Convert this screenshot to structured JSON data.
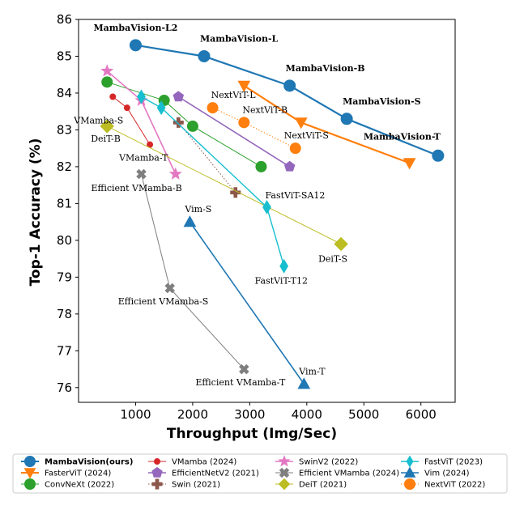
{
  "chart_data": {
    "type": "scatter",
    "xlabel": "Throughput (Img/Sec)",
    "ylabel": "Top-1 Accuracy (%)",
    "xlim": [
      0,
      6600
    ],
    "ylim": [
      75.6,
      86
    ],
    "xticks": [
      1000,
      2000,
      3000,
      4000,
      5000,
      6000
    ],
    "yticks": [
      76,
      77,
      78,
      79,
      80,
      81,
      82,
      83,
      84,
      85,
      86
    ],
    "grid": false,
    "legend_position": "bottom",
    "series": [
      {
        "name": "MambaVision(ours)",
        "color": "#1f77b4",
        "marker": "circle",
        "line": "solid",
        "lw": 2.2,
        "size": 7,
        "points": [
          [
            1000,
            85.3
          ],
          [
            2200,
            85.0
          ],
          [
            3700,
            84.2
          ],
          [
            4700,
            83.3
          ],
          [
            6300,
            82.3
          ]
        ],
        "labels": [
          {
            "i": 0,
            "text": "MambaVision-L2",
            "bold": true,
            "dx": -52,
            "dy": -18
          },
          {
            "i": 1,
            "text": "MambaVision-L",
            "bold": true,
            "dx": -5,
            "dy": -18
          },
          {
            "i": 2,
            "text": "MambaVision-B",
            "bold": true,
            "dx": -5,
            "dy": -18
          },
          {
            "i": 3,
            "text": "MambaVision-S",
            "bold": true,
            "dx": -5,
            "dy": -18
          },
          {
            "i": 4,
            "text": "MambaVision-T",
            "bold": true,
            "dx": -92,
            "dy": -20
          }
        ]
      },
      {
        "name": "FasterViT (2024)",
        "color": "#ff7f0e",
        "marker": "triangle-down",
        "line": "solid",
        "lw": 2.2,
        "size": 7,
        "points": [
          [
            2900,
            84.2
          ],
          [
            3900,
            83.2
          ],
          [
            5800,
            82.1
          ]
        ],
        "labels": []
      },
      {
        "name": "ConvNeXt (2022)",
        "color": "#2ca02c",
        "marker": "circle",
        "line": "solid",
        "lw": 1.0,
        "size": 6.5,
        "points": [
          [
            500,
            84.3
          ],
          [
            1500,
            83.8
          ],
          [
            2000,
            83.1
          ],
          [
            3200,
            82.0
          ]
        ],
        "labels": []
      },
      {
        "name": "VMamba (2024)",
        "color": "#d62728",
        "marker": "circle",
        "line": "solid",
        "lw": 1.0,
        "size": 3.5,
        "points": [
          [
            600,
            83.9
          ],
          [
            850,
            83.6
          ],
          [
            1250,
            82.6
          ]
        ],
        "labels": [
          {
            "i": 0,
            "text": "VMamba-S",
            "bold": false,
            "dx": -48,
            "dy": 33
          },
          {
            "i": 2,
            "text": "VMamba-T",
            "bold": false,
            "dx": -38,
            "dy": 20
          }
        ]
      },
      {
        "name": "EfficientNetV2 (2021)",
        "color": "#9467bd",
        "marker": "pentagon",
        "line": "solid",
        "lw": 1.6,
        "size": 6.5,
        "points": [
          [
            1750,
            83.9
          ],
          [
            3700,
            82.0
          ]
        ],
        "labels": []
      },
      {
        "name": "Swin (2021)",
        "color": "#8c564b",
        "marker": "plus",
        "line": "dotted",
        "lw": 1.0,
        "size": 6.5,
        "points": [
          [
            1750,
            83.2
          ],
          [
            2750,
            81.3
          ]
        ],
        "labels": []
      },
      {
        "name": "SwinV2 (2022)",
        "color": "#e377c2",
        "marker": "star",
        "line": "solid",
        "lw": 1.6,
        "size": 7,
        "points": [
          [
            500,
            84.6
          ],
          [
            1100,
            83.8
          ],
          [
            1700,
            81.8
          ]
        ],
        "labels": []
      },
      {
        "name": "Efficient VMamba (2024)",
        "color": "#7f7f7f",
        "marker": "x",
        "line": "solid",
        "lw": 1.0,
        "size": 6.5,
        "points": [
          [
            1100,
            81.8
          ],
          [
            1600,
            78.7
          ],
          [
            2900,
            76.5
          ]
        ],
        "labels": [
          {
            "i": 0,
            "text": "Efficient VMamba-B",
            "bold": false,
            "dx": -62,
            "dy": 21
          },
          {
            "i": 1,
            "text": "Efficient VMamba-S",
            "bold": false,
            "dx": -64,
            "dy": 20
          },
          {
            "i": 2,
            "text": "Efficient VMamba-T",
            "bold": false,
            "dx": -60,
            "dy": 20
          }
        ]
      },
      {
        "name": "DeiT (2021)",
        "color": "#bcbd22",
        "marker": "diamond",
        "line": "solid",
        "lw": 1.0,
        "size": 8,
        "points": [
          [
            500,
            83.1
          ],
          [
            4600,
            79.9
          ]
        ],
        "labels": [
          {
            "i": 0,
            "text": "DeiT-B",
            "bold": false,
            "dx": -20,
            "dy": 19
          },
          {
            "i": 1,
            "text": "DeiT-S",
            "bold": false,
            "dx": -28,
            "dy": 22
          }
        ]
      },
      {
        "name": "FastViT (2023)",
        "color": "#17becf",
        "marker": "thin-diamond",
        "line": "solid",
        "lw": 1.4,
        "size": 8,
        "points": [
          [
            1100,
            83.9
          ],
          [
            1450,
            83.6
          ],
          [
            3300,
            80.9
          ],
          [
            3600,
            79.3
          ]
        ],
        "labels": [
          {
            "i": 2,
            "text": "FastViT-SA12",
            "bold": false,
            "dx": -2,
            "dy": -11
          },
          {
            "i": 3,
            "text": "FastViT-T12",
            "bold": false,
            "dx": -36,
            "dy": 22
          }
        ]
      },
      {
        "name": "Vim (2024)",
        "color": "#1f77b4",
        "marker": "triangle-up",
        "line": "solid",
        "lw": 1.6,
        "size": 7,
        "points": [
          [
            1950,
            80.5
          ],
          [
            3950,
            76.1
          ]
        ],
        "labels": [
          {
            "i": 0,
            "text": "Vim-S",
            "bold": false,
            "dx": -6,
            "dy": -12
          },
          {
            "i": 1,
            "text": "Vim-T",
            "bold": false,
            "dx": -6,
            "dy": -12
          }
        ]
      },
      {
        "name": "NextViT (2022)",
        "color": "#ff7f0e",
        "marker": "circle",
        "line": "dotted",
        "lw": 1.0,
        "size": 6.5,
        "points": [
          [
            2350,
            83.6
          ],
          [
            2900,
            83.2
          ],
          [
            3800,
            82.5
          ]
        ],
        "labels": [
          {
            "i": 0,
            "text": "NextViT-L",
            "bold": false,
            "dx": -2,
            "dy": -12
          },
          {
            "i": 1,
            "text": "NextViT-B",
            "bold": false,
            "dx": -2,
            "dy": -12
          },
          {
            "i": 2,
            "text": "NextViT-S",
            "bold": false,
            "dx": -14,
            "dy": -12
          }
        ]
      }
    ]
  },
  "legend": {
    "columns": [
      [
        "MambaVision(ours)",
        "FasterViT (2024)",
        "ConvNeXt (2022)"
      ],
      [
        "VMamba (2024)",
        "EfficientNetV2 (2021)",
        "Swin (2021)"
      ],
      [
        "SwinV2 (2022)",
        "Efficient VMamba (2024)",
        "DeiT (2021)"
      ],
      [
        "FastViT (2023)",
        "Vim (2024)",
        "NextViT (2022)"
      ]
    ]
  }
}
